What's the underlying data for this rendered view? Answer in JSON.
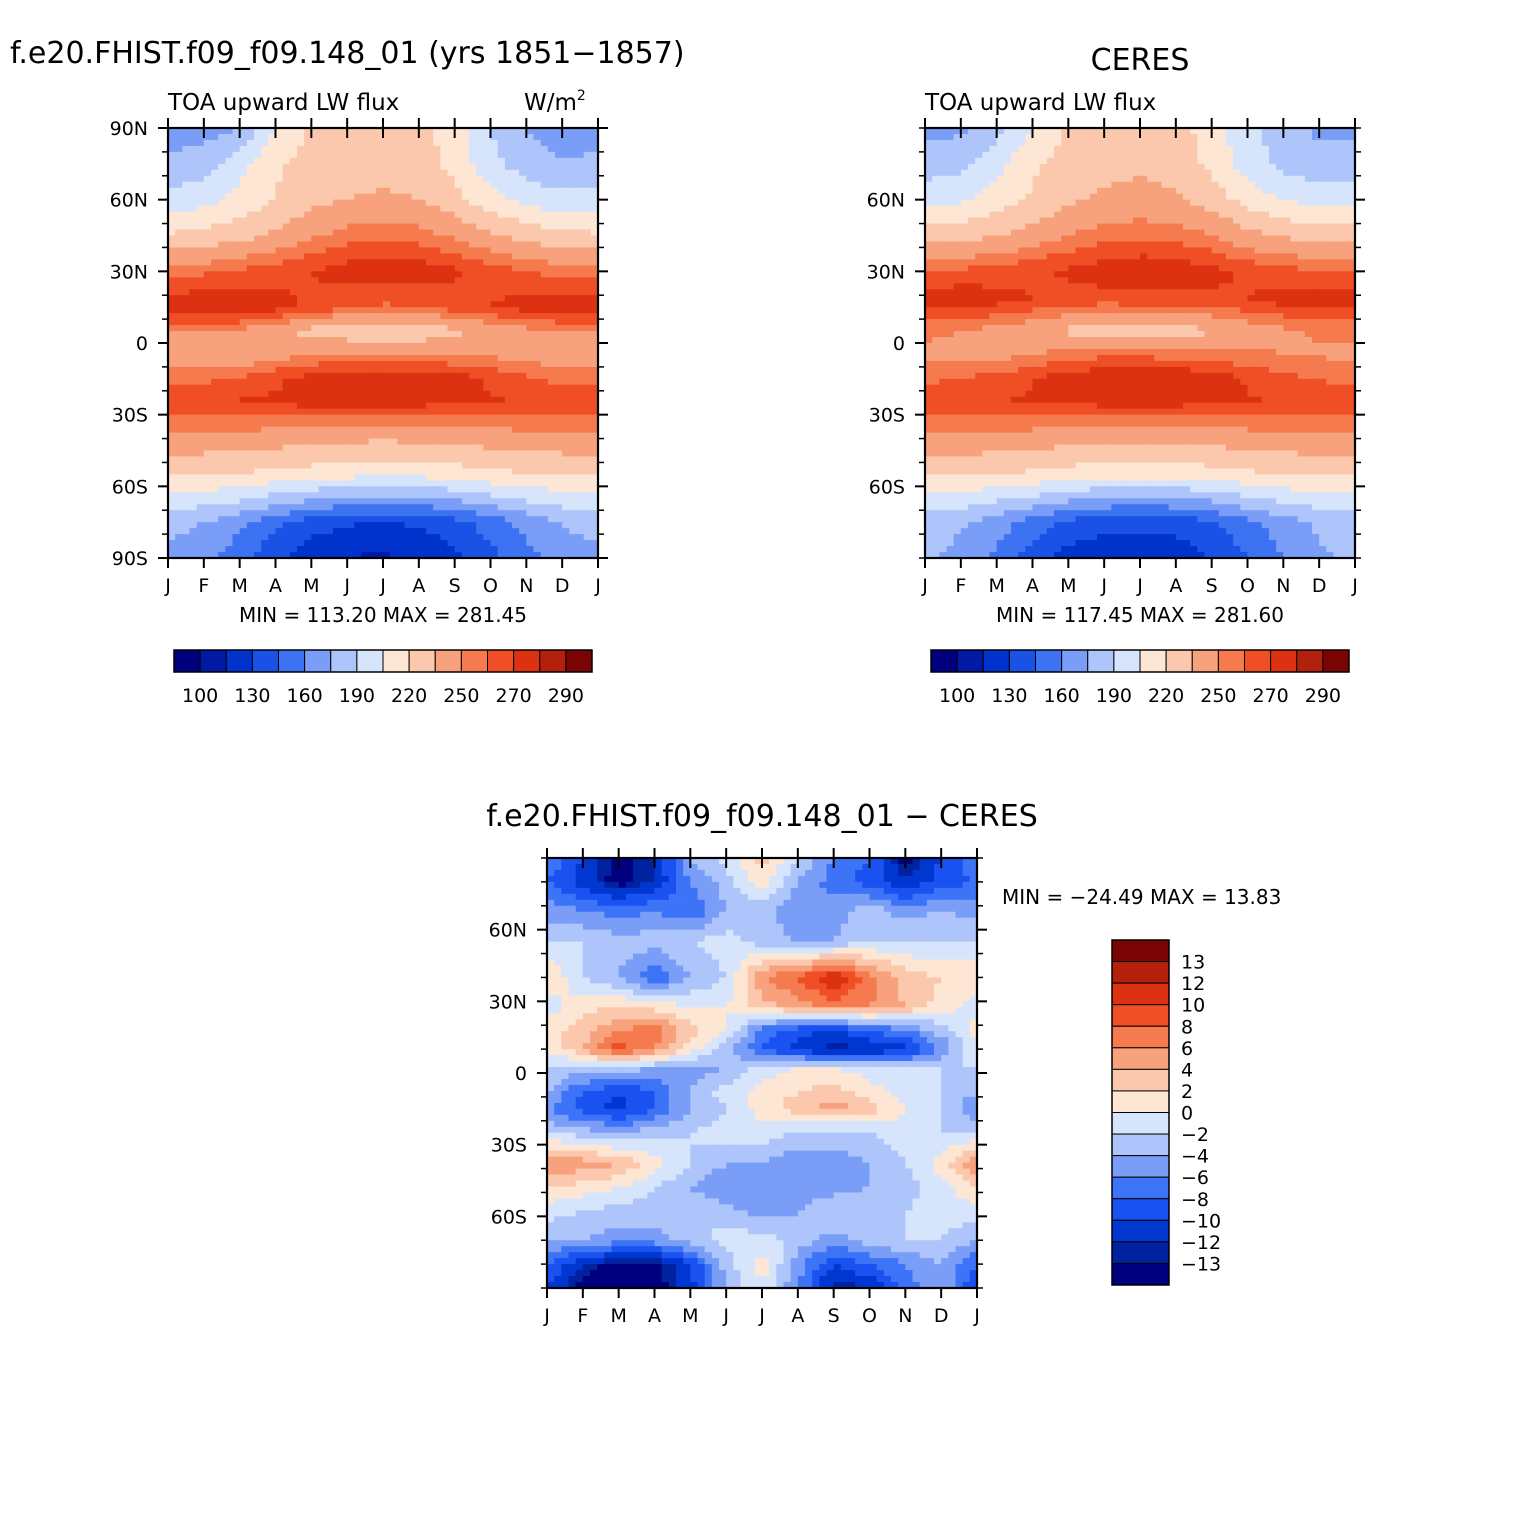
{
  "figure": {
    "case_title": "f.e20.FHIST.f09_f09.148_01 (yrs 1851−1857)",
    "obs_title": "CERES",
    "diff_title": "f.e20.FHIST.f09_f09.148_01  −  CERES"
  },
  "colors": {
    "abs_palette": [
      "#00007f",
      "#001aa6",
      "#0033cc",
      "#1a52e6",
      "#3d73f2",
      "#7a9ef7",
      "#adc5fa",
      "#d6e5fc",
      "#fde6d4",
      "#fbc8ad",
      "#f8a27d",
      "#f57a4e",
      "#f04e24",
      "#dc3211",
      "#b3200b",
      "#7a0404"
    ],
    "diff_palette": [
      "#00007f",
      "#0022a0",
      "#0037d1",
      "#1a52f2",
      "#3d73f7",
      "#7a9ef7",
      "#adc5fa",
      "#d6e5fc",
      "#fde6d4",
      "#fbc8ad",
      "#f8a27d",
      "#f57a4e",
      "#f04e24",
      "#dc3211",
      "#b3200b",
      "#7a0404"
    ]
  },
  "chart_data": [
    {
      "type": "heatmap",
      "title": "f.e20.FHIST.f09_f09.148_01 (yrs 1851−1857)",
      "left_label": "TOA upward LW flux",
      "right_label": "W/m",
      "units_exp": "2",
      "x_ticks": [
        "J",
        "F",
        "M",
        "A",
        "M",
        "J",
        "J",
        "A",
        "S",
        "O",
        "N",
        "D",
        "J"
      ],
      "y_ticks": [
        "90N",
        "60N",
        "30N",
        "0",
        "30S",
        "60S",
        "90S"
      ],
      "y_tick_values": [
        90,
        60,
        30,
        0,
        -30,
        -60,
        -90
      ],
      "ylim": [
        -90,
        90
      ],
      "min_label": "MIN = 113.20  MAX = 281.45",
      "min": 113.2,
      "max": 281.45,
      "levels": [
        100,
        115,
        130,
        145,
        160,
        175,
        190,
        205,
        220,
        235,
        250,
        260,
        270,
        280,
        290
      ],
      "colorbar_labels": [
        "100",
        "130",
        "160",
        "190",
        "220",
        "250",
        "270",
        "290"
      ],
      "colorbar_label_levels": [
        100,
        130,
        160,
        190,
        220,
        250,
        270,
        290
      ],
      "bands": [
        {
          "lat": 90,
          "values": [
            168,
            168,
            175,
            205,
            222,
            226,
            228,
            225,
            212,
            190,
            175,
            168,
            168
          ]
        },
        {
          "lat": 75,
          "values": [
            178,
            183,
            200,
            218,
            225,
            228,
            230,
            228,
            215,
            195,
            182,
            176,
            178
          ]
        },
        {
          "lat": 60,
          "values": [
            195,
            200,
            210,
            220,
            230,
            235,
            237,
            235,
            225,
            210,
            200,
            195,
            195
          ]
        },
        {
          "lat": 45,
          "values": [
            222,
            224,
            230,
            238,
            248,
            255,
            258,
            255,
            248,
            238,
            230,
            224,
            222
          ]
        },
        {
          "lat": 30,
          "values": [
            255,
            258,
            262,
            265,
            270,
            275,
            278,
            276,
            272,
            265,
            260,
            256,
            255
          ]
        },
        {
          "lat": 15,
          "values": [
            278,
            280,
            281,
            275,
            268,
            262,
            258,
            260,
            265,
            270,
            275,
            278,
            278
          ]
        },
        {
          "lat": 5,
          "values": [
            250,
            250,
            248,
            240,
            230,
            225,
            222,
            225,
            232,
            240,
            246,
            250,
            250
          ]
        },
        {
          "lat": -5,
          "values": [
            242,
            240,
            238,
            245,
            250,
            252,
            252,
            250,
            250,
            248,
            245,
            243,
            242
          ]
        },
        {
          "lat": -15,
          "values": [
            255,
            258,
            262,
            268,
            275,
            278,
            280,
            281,
            276,
            268,
            262,
            257,
            255
          ]
        },
        {
          "lat": -25,
          "values": [
            268,
            270,
            271,
            272,
            273,
            273,
            273,
            273,
            272,
            271,
            270,
            269,
            268
          ]
        },
        {
          "lat": -40,
          "values": [
            245,
            245,
            244,
            242,
            240,
            238,
            237,
            238,
            240,
            242,
            244,
            245,
            245
          ]
        },
        {
          "lat": -55,
          "values": [
            222,
            221,
            219,
            216,
            213,
            210,
            208,
            209,
            212,
            216,
            219,
            221,
            222
          ]
        },
        {
          "lat": -65,
          "values": [
            200,
            198,
            193,
            185,
            178,
            173,
            172,
            173,
            178,
            186,
            193,
            198,
            200
          ]
        },
        {
          "lat": -75,
          "values": [
            180,
            175,
            165,
            150,
            138,
            132,
            130,
            132,
            140,
            152,
            165,
            176,
            180
          ]
        },
        {
          "lat": -90,
          "values": [
            172,
            165,
            150,
            133,
            120,
            114,
            113,
            116,
            126,
            140,
            155,
            168,
            172
          ]
        }
      ]
    },
    {
      "type": "heatmap",
      "title": "CERES",
      "left_label": "TOA upward LW flux",
      "x_ticks": [
        "J",
        "F",
        "M",
        "A",
        "M",
        "J",
        "J",
        "A",
        "S",
        "O",
        "N",
        "D",
        "J"
      ],
      "y_ticks": [
        "60N",
        "30N",
        "0",
        "30S",
        "60S"
      ],
      "y_tick_values": [
        60,
        30,
        0,
        -30,
        -60
      ],
      "ylim": [
        -90,
        90
      ],
      "min_label": "MIN = 117.45  MAX = 281.60",
      "min": 117.45,
      "max": 281.6,
      "levels": [
        100,
        115,
        130,
        145,
        160,
        175,
        190,
        205,
        220,
        235,
        250,
        260,
        270,
        280,
        290
      ],
      "colorbar_labels": [
        "100",
        "130",
        "160",
        "190",
        "220",
        "250",
        "270",
        "290"
      ],
      "colorbar_label_levels": [
        100,
        130,
        160,
        190,
        220,
        250,
        270,
        290
      ],
      "bands": [
        {
          "lat": 90,
          "values": [
            170,
            172,
            185,
            205,
            222,
            228,
            230,
            227,
            212,
            195,
            180,
            172,
            170
          ]
        },
        {
          "lat": 75,
          "values": [
            182,
            186,
            200,
            218,
            226,
            230,
            232,
            229,
            216,
            198,
            186,
            180,
            182
          ]
        },
        {
          "lat": 60,
          "values": [
            200,
            202,
            212,
            222,
            232,
            238,
            240,
            238,
            228,
            214,
            204,
            200,
            200
          ]
        },
        {
          "lat": 45,
          "values": [
            228,
            230,
            234,
            242,
            250,
            256,
            258,
            256,
            250,
            240,
            233,
            229,
            228
          ]
        },
        {
          "lat": 30,
          "values": [
            260,
            262,
            265,
            268,
            272,
            276,
            279,
            277,
            273,
            268,
            264,
            261,
            260
          ]
        },
        {
          "lat": 18,
          "values": [
            276,
            278,
            274,
            270,
            266,
            265,
            266,
            267,
            268,
            270,
            274,
            277,
            276
          ]
        },
        {
          "lat": 5,
          "values": [
            252,
            250,
            246,
            240,
            232,
            226,
            224,
            227,
            234,
            242,
            248,
            251,
            252
          ]
        },
        {
          "lat": -5,
          "values": [
            248,
            246,
            246,
            250,
            255,
            258,
            258,
            256,
            254,
            252,
            250,
            249,
            248
          ]
        },
        {
          "lat": -15,
          "values": [
            258,
            260,
            264,
            270,
            276,
            279,
            281,
            280,
            276,
            269,
            263,
            259,
            258
          ]
        },
        {
          "lat": -25,
          "values": [
            268,
            269,
            270,
            271,
            272,
            273,
            273,
            273,
            272,
            271,
            270,
            269,
            268
          ]
        },
        {
          "lat": -40,
          "values": [
            246,
            246,
            245,
            243,
            241,
            239,
            238,
            239,
            241,
            243,
            245,
            246,
            246
          ]
        },
        {
          "lat": -55,
          "values": [
            222,
            221,
            220,
            217,
            214,
            211,
            210,
            211,
            214,
            217,
            220,
            221,
            222
          ]
        },
        {
          "lat": -65,
          "values": [
            202,
            199,
            194,
            187,
            180,
            175,
            174,
            175,
            180,
            188,
            195,
            200,
            202
          ]
        },
        {
          "lat": -75,
          "values": [
            183,
            177,
            168,
            154,
            142,
            136,
            134,
            136,
            144,
            156,
            168,
            178,
            183
          ]
        },
        {
          "lat": -90,
          "values": [
            178,
            170,
            156,
            138,
            124,
            119,
            118,
            120,
            130,
            144,
            160,
            172,
            178
          ]
        }
      ]
    },
    {
      "type": "heatmap",
      "title": "f.e20.FHIST.f09_f09.148_01  −  CERES",
      "x_ticks": [
        "J",
        "F",
        "M",
        "A",
        "M",
        "J",
        "J",
        "A",
        "S",
        "O",
        "N",
        "D",
        "J"
      ],
      "y_ticks": [
        "60N",
        "30N",
        "0",
        "30S",
        "60S"
      ],
      "y_tick_values": [
        60,
        30,
        0,
        -30,
        -60
      ],
      "ylim": [
        -90,
        90
      ],
      "min_label": "MIN = −24.49 MAX =   13.83",
      "min": -24.49,
      "max": 13.83,
      "levels": [
        -13,
        -12,
        -10,
        -8,
        -6,
        -4,
        -2,
        0,
        2,
        4,
        6,
        8,
        10,
        12,
        13
      ],
      "colorbar_labels": [
        "13",
        "12",
        "10",
        "8",
        "6",
        "4",
        "2",
        "0",
        "−2",
        "−4",
        "−6",
        "−8",
        "−10",
        "−12",
        "−13"
      ],
      "bands": [
        {
          "lat": 90,
          "values": [
            -6,
            -10,
            -14,
            -12,
            -4,
            -1,
            3,
            -2,
            -6,
            -8,
            -14,
            -10,
            -6
          ]
        },
        {
          "lat": 80,
          "values": [
            -8,
            -11,
            -14,
            -12,
            -6,
            -3,
            1,
            -4,
            -7,
            -9,
            -12,
            -9,
            -8
          ]
        },
        {
          "lat": 68,
          "values": [
            -5,
            -6,
            -7,
            -6,
            -8,
            -4,
            -3,
            -6,
            -5,
            -3,
            -5,
            -4,
            -5
          ]
        },
        {
          "lat": 55,
          "values": [
            -2,
            -2,
            -3,
            -3,
            -2,
            -1,
            -3,
            -4,
            -4,
            -2,
            -2,
            -2,
            -2
          ]
        },
        {
          "lat": 40,
          "values": [
            2,
            -2,
            -4,
            -8,
            -4,
            -2,
            6,
            8,
            12,
            7,
            3,
            2,
            2
          ]
        },
        {
          "lat": 28,
          "values": [
            -1,
            1,
            2,
            1,
            0,
            0,
            3,
            5,
            7,
            6,
            4,
            1,
            -1
          ]
        },
        {
          "lat": 18,
          "values": [
            1,
            3,
            6,
            7,
            3,
            0,
            -7,
            -9,
            -10,
            -8,
            -6,
            -3,
            1
          ]
        },
        {
          "lat": 10,
          "values": [
            0,
            4,
            9,
            6,
            1,
            -3,
            -8,
            -11,
            -13,
            -12,
            -11,
            -6,
            0
          ]
        },
        {
          "lat": 2,
          "values": [
            -2,
            -3,
            -3,
            -4,
            -5,
            -4,
            -1,
            0,
            0,
            -1,
            -2,
            -2,
            -2
          ]
        },
        {
          "lat": -8,
          "values": [
            -4,
            -8,
            -10,
            -8,
            -4,
            -1,
            1,
            2,
            3,
            1,
            -1,
            -2,
            -4
          ]
        },
        {
          "lat": -15,
          "values": [
            -6,
            -9,
            -11,
            -8,
            -4,
            -2,
            1,
            3,
            5,
            3,
            0,
            -2,
            -6
          ]
        },
        {
          "lat": -25,
          "values": [
            -2,
            -3,
            -4,
            -3,
            -2,
            -1,
            -1,
            -2,
            -3,
            -2,
            -1,
            -2,
            -2
          ]
        },
        {
          "lat": -38,
          "values": [
            6,
            5,
            4,
            1,
            -2,
            -4,
            -4,
            -6,
            -5,
            -4,
            -2,
            1,
            6
          ]
        },
        {
          "lat": -48,
          "values": [
            2,
            1,
            0,
            -2,
            -4,
            -6,
            -6,
            -5,
            -5,
            -4,
            -3,
            -1,
            2
          ]
        },
        {
          "lat": -58,
          "values": [
            -1,
            -2,
            -3,
            -3,
            -2,
            -3,
            -5,
            -4,
            -2,
            -2,
            -2,
            -1,
            -1
          ]
        },
        {
          "lat": -70,
          "values": [
            -4,
            -4,
            -5,
            -5,
            -3,
            -1,
            -1,
            -3,
            -5,
            -3,
            -2,
            -2,
            -4
          ]
        },
        {
          "lat": -80,
          "values": [
            -8,
            -12,
            -14,
            -14,
            -10,
            -3,
            1,
            -5,
            -10,
            -8,
            -6,
            -4,
            -8
          ]
        },
        {
          "lat": -90,
          "values": [
            -10,
            -14,
            -14,
            -14,
            -11,
            -4,
            0,
            -6,
            -13,
            -12,
            -7,
            -4,
            -10
          ]
        }
      ]
    }
  ]
}
